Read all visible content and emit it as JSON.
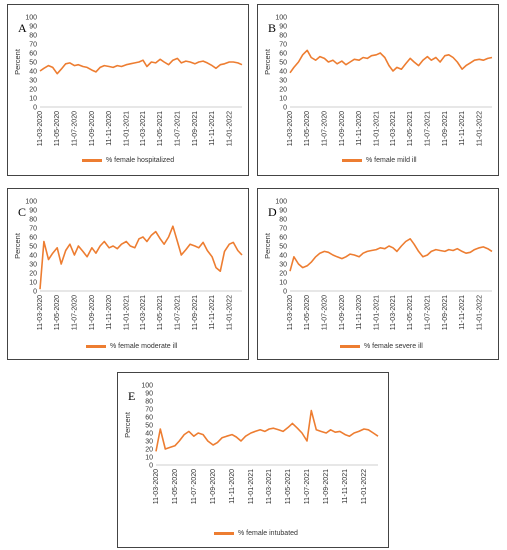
{
  "chart_data": [
    {
      "panel": "A",
      "type": "line",
      "ylabel": "Percent",
      "ylim": [
        0,
        100
      ],
      "yticks": [
        0,
        10,
        20,
        30,
        40,
        50,
        60,
        70,
        80,
        90,
        100
      ],
      "xticks": [
        "11-03-2020",
        "11-05-2020",
        "11-07-2020",
        "11-09-2020",
        "11-11-2020",
        "11-01-2021",
        "11-03-2021",
        "11-05-2021",
        "11-07-2021",
        "11-09-2021",
        "11-11-2021",
        "11-01-2022"
      ],
      "series": [
        {
          "name": "% female hospitalized",
          "color": "#ED7D31",
          "x": [
            "2020-03-11",
            "2020-03-25",
            "2020-04-10",
            "2020-04-25",
            "2020-05-11",
            "2020-05-25",
            "2020-06-10",
            "2020-06-25",
            "2020-07-11",
            "2020-07-25",
            "2020-08-10",
            "2020-08-25",
            "2020-09-11",
            "2020-09-25",
            "2020-10-10",
            "2020-10-25",
            "2020-11-11",
            "2020-11-25",
            "2020-12-10",
            "2020-12-25",
            "2021-01-11",
            "2021-01-25",
            "2021-02-10",
            "2021-02-25",
            "2021-03-11",
            "2021-03-25",
            "2021-04-10",
            "2021-04-25",
            "2021-05-11",
            "2021-05-25",
            "2021-06-10",
            "2021-06-25",
            "2021-07-11",
            "2021-07-25",
            "2021-08-10",
            "2021-08-25",
            "2021-09-11",
            "2021-09-25",
            "2021-10-10",
            "2021-10-25",
            "2021-11-11",
            "2021-11-25",
            "2021-12-10",
            "2021-12-25",
            "2022-01-11",
            "2022-01-25",
            "2022-02-10",
            "2022-02-25"
          ],
          "values": [
            40,
            43,
            46,
            44,
            37,
            42,
            48,
            49,
            46,
            47,
            45,
            44,
            41,
            39,
            44,
            46,
            45,
            44,
            46,
            45,
            47,
            48,
            49,
            50,
            52,
            45,
            50,
            49,
            53,
            50,
            47,
            52,
            54,
            49,
            51,
            50,
            48,
            50,
            51,
            49,
            46,
            43,
            47,
            48,
            50,
            50,
            49,
            47
          ]
        }
      ]
    },
    {
      "panel": "B",
      "type": "line",
      "ylabel": "Percent",
      "ylim": [
        0,
        100
      ],
      "yticks": [
        0,
        10,
        20,
        30,
        40,
        50,
        60,
        70,
        80,
        90,
        100
      ],
      "xticks": [
        "11-03-2020",
        "11-05-2020",
        "11-07-2020",
        "11-09-2020",
        "11-11-2020",
        "11-01-2021",
        "11-03-2021",
        "11-05-2021",
        "11-07-2021",
        "11-09-2021",
        "11-11-2021",
        "11-01-2022"
      ],
      "series": [
        {
          "name": "% female mild ill",
          "color": "#ED7D31",
          "x": [
            "2020-03-11",
            "2020-03-25",
            "2020-04-10",
            "2020-04-25",
            "2020-05-11",
            "2020-05-25",
            "2020-06-10",
            "2020-06-25",
            "2020-07-11",
            "2020-07-25",
            "2020-08-10",
            "2020-08-25",
            "2020-09-11",
            "2020-09-25",
            "2020-10-10",
            "2020-10-25",
            "2020-11-11",
            "2020-11-25",
            "2020-12-10",
            "2020-12-25",
            "2021-01-11",
            "2021-01-25",
            "2021-02-10",
            "2021-02-25",
            "2021-03-11",
            "2021-03-25",
            "2021-04-10",
            "2021-04-25",
            "2021-05-11",
            "2021-05-25",
            "2021-06-10",
            "2021-06-25",
            "2021-07-11",
            "2021-07-25",
            "2021-08-10",
            "2021-08-25",
            "2021-09-11",
            "2021-09-25",
            "2021-10-10",
            "2021-10-25",
            "2021-11-11",
            "2021-11-25",
            "2021-12-10",
            "2021-12-25",
            "2022-01-11",
            "2022-01-25",
            "2022-02-10",
            "2022-02-25"
          ],
          "values": [
            38,
            44,
            50,
            58,
            63,
            55,
            52,
            56,
            54,
            50,
            52,
            48,
            51,
            47,
            50,
            53,
            52,
            55,
            54,
            57,
            58,
            60,
            55,
            46,
            40,
            44,
            42,
            48,
            54,
            50,
            46,
            52,
            56,
            52,
            55,
            50,
            57,
            58,
            55,
            50,
            42,
            46,
            49,
            52,
            53,
            52,
            54,
            55
          ]
        }
      ]
    },
    {
      "panel": "C",
      "type": "line",
      "ylabel": "Percent",
      "ylim": [
        0,
        100
      ],
      "yticks": [
        0,
        10,
        20,
        30,
        40,
        50,
        60,
        70,
        80,
        90,
        100
      ],
      "xticks": [
        "11-03-2020",
        "11-05-2020",
        "11-07-2020",
        "11-09-2020",
        "11-11-2020",
        "11-01-2021",
        "11-03-2021",
        "11-05-2021",
        "11-07-2021",
        "11-09-2021",
        "11-11-2021",
        "11-01-2022"
      ],
      "series": [
        {
          "name": "% female moderate ill",
          "color": "#ED7D31",
          "x": [
            "2020-03-11",
            "2020-03-25",
            "2020-04-10",
            "2020-04-25",
            "2020-05-11",
            "2020-05-25",
            "2020-06-10",
            "2020-06-25",
            "2020-07-11",
            "2020-07-25",
            "2020-08-10",
            "2020-08-25",
            "2020-09-11",
            "2020-09-25",
            "2020-10-10",
            "2020-10-25",
            "2020-11-11",
            "2020-11-25",
            "2020-12-10",
            "2020-12-25",
            "2021-01-11",
            "2021-01-25",
            "2021-02-10",
            "2021-02-25",
            "2021-03-11",
            "2021-03-25",
            "2021-04-10",
            "2021-04-25",
            "2021-05-11",
            "2021-05-25",
            "2021-06-10",
            "2021-06-25",
            "2021-07-11",
            "2021-07-25",
            "2021-08-10",
            "2021-08-25",
            "2021-09-11",
            "2021-09-25",
            "2021-10-10",
            "2021-10-25",
            "2021-11-11",
            "2021-11-25",
            "2021-12-10",
            "2021-12-25",
            "2022-01-11",
            "2022-01-25",
            "2022-02-10",
            "2022-02-25"
          ],
          "values": [
            2,
            55,
            35,
            42,
            48,
            30,
            45,
            52,
            40,
            50,
            44,
            38,
            48,
            42,
            50,
            55,
            48,
            50,
            47,
            52,
            55,
            50,
            48,
            58,
            60,
            55,
            62,
            66,
            58,
            52,
            60,
            72,
            55,
            40,
            46,
            52,
            50,
            48,
            54,
            45,
            38,
            26,
            22,
            44,
            52,
            54,
            45,
            40
          ]
        }
      ]
    },
    {
      "panel": "D",
      "type": "line",
      "ylabel": "Percent",
      "ylim": [
        0,
        100
      ],
      "yticks": [
        0,
        10,
        20,
        30,
        40,
        50,
        60,
        70,
        80,
        90,
        100
      ],
      "xticks": [
        "11-03-2020",
        "11-05-2020",
        "11-07-2020",
        "11-09-2020",
        "11-11-2020",
        "11-01-2021",
        "11-03-2021",
        "11-05-2021",
        "11-07-2021",
        "11-09-2021",
        "11-11-2021",
        "11-01-2022"
      ],
      "series": [
        {
          "name": "% female severe ill",
          "color": "#ED7D31",
          "x": [
            "2020-03-11",
            "2020-03-25",
            "2020-04-10",
            "2020-04-25",
            "2020-05-11",
            "2020-05-25",
            "2020-06-10",
            "2020-06-25",
            "2020-07-11",
            "2020-07-25",
            "2020-08-10",
            "2020-08-25",
            "2020-09-11",
            "2020-09-25",
            "2020-10-10",
            "2020-10-25",
            "2020-11-11",
            "2020-11-25",
            "2020-12-10",
            "2020-12-25",
            "2021-01-11",
            "2021-01-25",
            "2021-02-10",
            "2021-02-25",
            "2021-03-11",
            "2021-03-25",
            "2021-04-10",
            "2021-04-25",
            "2021-05-11",
            "2021-05-25",
            "2021-06-10",
            "2021-06-25",
            "2021-07-11",
            "2021-07-25",
            "2021-08-10",
            "2021-08-25",
            "2021-09-11",
            "2021-09-25",
            "2021-10-10",
            "2021-10-25",
            "2021-11-11",
            "2021-11-25",
            "2021-12-10",
            "2021-12-25",
            "2022-01-11",
            "2022-01-25",
            "2022-02-10",
            "2022-02-25"
          ],
          "values": [
            22,
            38,
            30,
            26,
            28,
            32,
            38,
            42,
            44,
            43,
            40,
            38,
            36,
            38,
            41,
            40,
            38,
            42,
            44,
            45,
            46,
            48,
            47,
            50,
            48,
            44,
            50,
            55,
            58,
            52,
            44,
            38,
            40,
            44,
            46,
            45,
            44,
            46,
            45,
            47,
            44,
            42,
            43,
            46,
            48,
            49,
            47,
            44
          ]
        }
      ]
    },
    {
      "panel": "E",
      "type": "line",
      "ylabel": "Percent",
      "ylim": [
        0,
        100
      ],
      "yticks": [
        0,
        10,
        20,
        30,
        40,
        50,
        60,
        70,
        80,
        90,
        100
      ],
      "xticks": [
        "11-03-2020",
        "11-05-2020",
        "11-07-2020",
        "11-09-2020",
        "11-11-2020",
        "11-01-2021",
        "11-03-2021",
        "11-05-2021",
        "11-07-2021",
        "11-09-2021",
        "11-11-2021",
        "11-01-2022"
      ],
      "series": [
        {
          "name": "% female intubated",
          "color": "#ED7D31",
          "x": [
            "2020-03-11",
            "2020-03-25",
            "2020-04-10",
            "2020-04-25",
            "2020-05-11",
            "2020-05-25",
            "2020-06-10",
            "2020-06-25",
            "2020-07-11",
            "2020-07-25",
            "2020-08-10",
            "2020-08-25",
            "2020-09-11",
            "2020-09-25",
            "2020-10-10",
            "2020-10-25",
            "2020-11-11",
            "2020-11-25",
            "2020-12-10",
            "2020-12-25",
            "2021-01-11",
            "2021-01-25",
            "2021-02-10",
            "2021-02-25",
            "2021-03-11",
            "2021-03-25",
            "2021-04-10",
            "2021-04-25",
            "2021-05-11",
            "2021-05-25",
            "2021-06-10",
            "2021-06-25",
            "2021-07-11",
            "2021-07-25",
            "2021-08-10",
            "2021-08-25",
            "2021-09-11",
            "2021-09-25",
            "2021-10-10",
            "2021-10-25",
            "2021-11-11",
            "2021-11-25",
            "2021-12-10",
            "2021-12-25",
            "2022-01-11",
            "2022-01-25",
            "2022-02-10",
            "2022-02-25"
          ],
          "values": [
            17,
            45,
            20,
            22,
            24,
            30,
            38,
            42,
            36,
            40,
            38,
            30,
            25,
            28,
            34,
            36,
            38,
            35,
            30,
            36,
            40,
            42,
            44,
            42,
            45,
            46,
            44,
            42,
            47,
            52,
            46,
            40,
            30,
            68,
            44,
            42,
            40,
            44,
            41,
            42,
            38,
            36,
            40,
            42,
            45,
            44,
            40,
            36
          ]
        }
      ]
    }
  ],
  "panels": [
    {
      "letter": "A",
      "legend": "% female hospitalized"
    },
    {
      "letter": "B",
      "legend": "% female mild ill"
    },
    {
      "letter": "C",
      "legend": "% female moderate ill"
    },
    {
      "letter": "D",
      "legend": "% female severe ill"
    },
    {
      "letter": "E",
      "legend": "% female intubated"
    }
  ]
}
